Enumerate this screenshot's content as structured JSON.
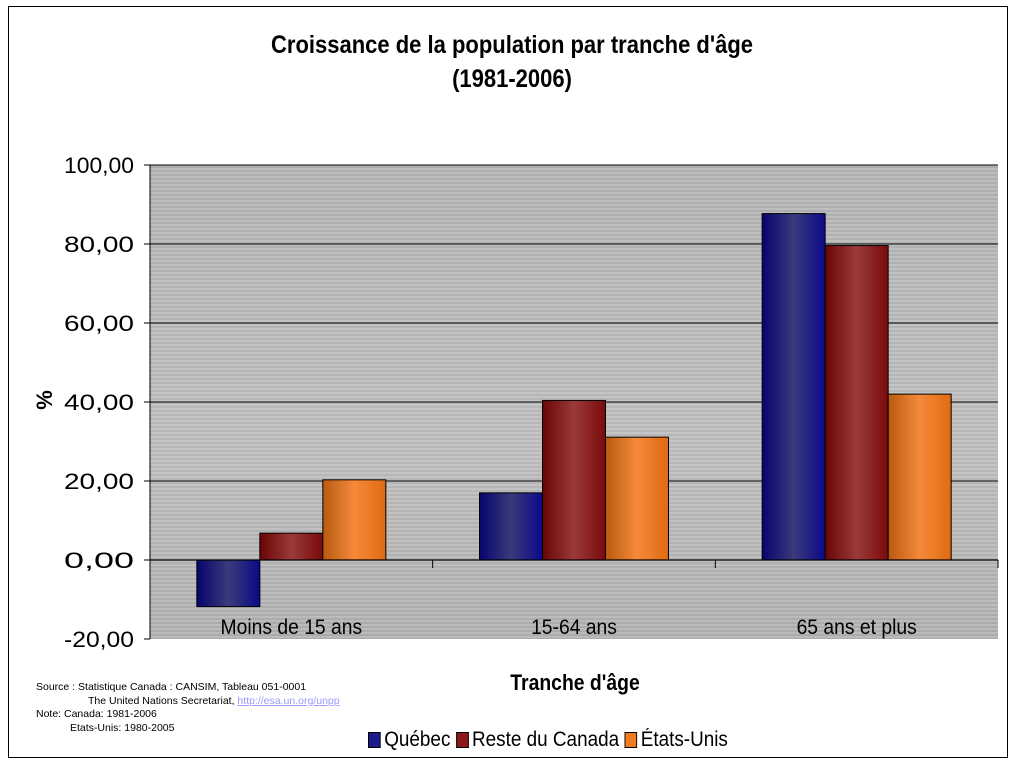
{
  "chart_data": {
    "type": "bar",
    "title_line1": "Croissance de la population par tranche d'âge",
    "title_line2": "(1981-2006)",
    "xlabel": "Tranche d'âge",
    "ylabel": "%",
    "ylim": [
      -20,
      100
    ],
    "yticks": [
      "100,00",
      "80,00",
      "60,00",
      "40,00",
      "20,00",
      "0,00",
      "-20,00"
    ],
    "ytick_values": [
      100,
      80,
      60,
      40,
      20,
      0,
      -20
    ],
    "categories": [
      "Moins de 15 ans",
      "15-64 ans",
      "65 ans et plus"
    ],
    "series": [
      {
        "name": "Québec",
        "values": [
          -11.8,
          17.0,
          87.7
        ],
        "color": "#1a1a8c"
      },
      {
        "name": "Reste du Canada",
        "values": [
          6.8,
          40.4,
          79.6
        ],
        "color": "#8c1a1a"
      },
      {
        "name": "États-Unis",
        "values": [
          20.3,
          31.1,
          42.0
        ],
        "color": "#f07b20"
      }
    ],
    "legend_position": "bottom",
    "grid": true
  },
  "source": {
    "line1": "Source : Statistique Canada : CANSIM, Tableau 051-0001",
    "line2_text": "The United Nations Secretariat,",
    "line2_link": "http://esa.un.org/unpp",
    "line3": "Note:  Canada: 1981-2006",
    "line4": "Etats-Unis: 1980-2005"
  }
}
